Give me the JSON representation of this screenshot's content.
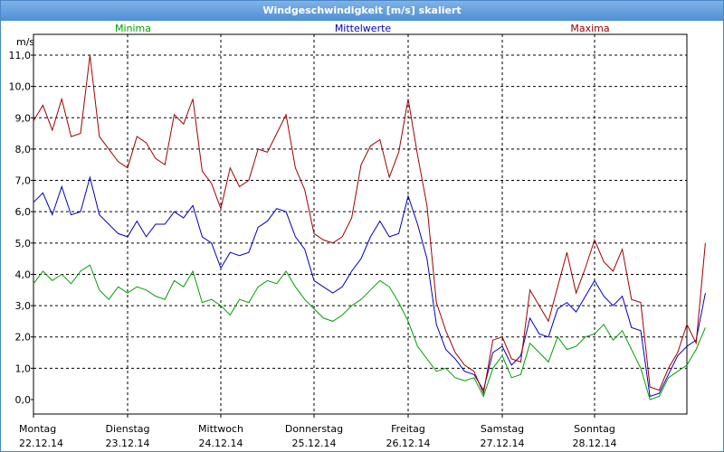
{
  "window": {
    "title": "Windgeschwindigkeit [m/s] skaliert"
  },
  "chart_data": {
    "type": "line",
    "title": "Windgeschwindigkeit [m/s] skaliert",
    "ylabel": "m/s",
    "ylim": [
      0,
      11.5
    ],
    "yticks": [
      "0,0",
      "1,0",
      "2,0",
      "3,0",
      "4,0",
      "5,0",
      "6,0",
      "7,0",
      "8,0",
      "9,0",
      "10,0",
      "11,0"
    ],
    "xlim": [
      0,
      7.2
    ],
    "xticks": [
      {
        "day": "Montag",
        "date": "22.12.14"
      },
      {
        "day": "Dienstag",
        "date": "23.12.14"
      },
      {
        "day": "Mittwoch",
        "date": "24.12.14"
      },
      {
        "day": "Donnerstag",
        "date": "25.12.14"
      },
      {
        "day": "Freitag",
        "date": "26.12.14"
      },
      {
        "day": "Samstag",
        "date": "27.12.14"
      },
      {
        "day": "Sonntag",
        "date": "28.12.14"
      }
    ],
    "grid": true,
    "legend_position": "top",
    "series": [
      {
        "name": "Minima",
        "color": "#00a000",
        "x": [
          0,
          0.1,
          0.2,
          0.3,
          0.4,
          0.5,
          0.6,
          0.7,
          0.8,
          0.9,
          1.0,
          1.1,
          1.2,
          1.3,
          1.4,
          1.5,
          1.6,
          1.7,
          1.8,
          1.9,
          2.0,
          2.1,
          2.2,
          2.3,
          2.4,
          2.5,
          2.6,
          2.7,
          2.8,
          2.9,
          3.0,
          3.1,
          3.2,
          3.3,
          3.4,
          3.5,
          3.6,
          3.7,
          3.8,
          3.9,
          4.0,
          4.1,
          4.2,
          4.3,
          4.4,
          4.5,
          4.6,
          4.7,
          4.8,
          4.9,
          5.0,
          5.1,
          5.2,
          5.3,
          5.4,
          5.5,
          5.6,
          5.7,
          5.8,
          5.9,
          6.0,
          6.1,
          6.2,
          6.3,
          6.4,
          6.5,
          6.6,
          6.7,
          6.8,
          6.9,
          7.0,
          7.1,
          7.2
        ],
        "values": [
          3.7,
          4.1,
          3.8,
          4.0,
          3.7,
          4.1,
          4.3,
          3.5,
          3.2,
          3.6,
          3.4,
          3.6,
          3.5,
          3.3,
          3.2,
          3.8,
          3.6,
          4.1,
          3.1,
          3.2,
          3.0,
          2.7,
          3.2,
          3.1,
          3.6,
          3.8,
          3.7,
          4.1,
          3.6,
          3.2,
          2.9,
          2.6,
          2.5,
          2.7,
          3.0,
          3.2,
          3.5,
          3.8,
          3.6,
          3.1,
          2.5,
          1.7,
          1.3,
          0.9,
          1.0,
          0.7,
          0.6,
          0.7,
          0.1,
          1.0,
          1.4,
          0.7,
          0.8,
          1.8,
          1.5,
          1.2,
          2.0,
          1.6,
          1.7,
          2.0,
          2.1,
          2.4,
          1.9,
          2.2,
          1.6,
          1.0,
          0.0,
          0.1,
          0.7,
          0.9,
          1.1,
          1.6,
          2.3
        ]
      },
      {
        "name": "Mittelwerte",
        "color": "#0000c0",
        "x": [
          0,
          0.1,
          0.2,
          0.3,
          0.4,
          0.5,
          0.6,
          0.7,
          0.8,
          0.9,
          1.0,
          1.1,
          1.2,
          1.3,
          1.4,
          1.5,
          1.6,
          1.7,
          1.8,
          1.9,
          2.0,
          2.1,
          2.2,
          2.3,
          2.4,
          2.5,
          2.6,
          2.7,
          2.8,
          2.9,
          3.0,
          3.1,
          3.2,
          3.3,
          3.4,
          3.5,
          3.6,
          3.7,
          3.8,
          3.9,
          4.0,
          4.1,
          4.2,
          4.3,
          4.4,
          4.5,
          4.6,
          4.7,
          4.8,
          4.9,
          5.0,
          5.1,
          5.2,
          5.3,
          5.4,
          5.5,
          5.6,
          5.7,
          5.8,
          5.9,
          6.0,
          6.1,
          6.2,
          6.3,
          6.4,
          6.5,
          6.6,
          6.7,
          6.8,
          6.9,
          7.0,
          7.1,
          7.2
        ],
        "values": [
          6.3,
          6.6,
          5.9,
          6.8,
          5.9,
          6.0,
          7.1,
          5.9,
          5.6,
          5.3,
          5.2,
          5.7,
          5.2,
          5.6,
          5.6,
          6.0,
          5.8,
          6.2,
          5.2,
          5.0,
          4.2,
          4.7,
          4.6,
          4.7,
          5.5,
          5.7,
          6.1,
          6.0,
          5.2,
          4.8,
          3.8,
          3.6,
          3.4,
          3.6,
          4.1,
          4.5,
          5.2,
          5.7,
          5.2,
          5.3,
          6.5,
          5.6,
          4.5,
          2.4,
          1.6,
          1.3,
          0.9,
          0.8,
          0.3,
          1.5,
          1.7,
          1.1,
          1.4,
          2.6,
          2.1,
          2.0,
          2.9,
          3.1,
          2.8,
          3.3,
          3.8,
          3.3,
          3.0,
          3.3,
          2.3,
          2.2,
          0.1,
          0.2,
          0.8,
          1.4,
          1.7,
          1.9,
          3.4
        ]
      },
      {
        "name": "Maxima",
        "color": "#a00000",
        "x": [
          0,
          0.1,
          0.2,
          0.3,
          0.4,
          0.5,
          0.6,
          0.7,
          0.8,
          0.9,
          1.0,
          1.1,
          1.2,
          1.3,
          1.4,
          1.5,
          1.6,
          1.7,
          1.8,
          1.9,
          2.0,
          2.1,
          2.2,
          2.3,
          2.4,
          2.5,
          2.6,
          2.7,
          2.8,
          2.9,
          3.0,
          3.1,
          3.2,
          3.3,
          3.4,
          3.5,
          3.6,
          3.7,
          3.8,
          3.9,
          4.0,
          4.1,
          4.2,
          4.3,
          4.4,
          4.5,
          4.6,
          4.7,
          4.8,
          4.9,
          5.0,
          5.1,
          5.2,
          5.3,
          5.4,
          5.5,
          5.6,
          5.7,
          5.8,
          5.9,
          6.0,
          6.1,
          6.2,
          6.3,
          6.4,
          6.5,
          6.6,
          6.7,
          6.8,
          6.9,
          7.0,
          7.1,
          7.2
        ],
        "values": [
          8.9,
          9.4,
          8.6,
          9.6,
          8.4,
          8.5,
          11.0,
          8.4,
          8.0,
          7.6,
          7.4,
          8.4,
          8.2,
          7.7,
          7.5,
          9.1,
          8.8,
          9.6,
          7.3,
          6.9,
          6.1,
          7.4,
          6.8,
          7.0,
          8.0,
          7.9,
          8.5,
          9.1,
          7.4,
          6.7,
          5.3,
          5.1,
          5.0,
          5.2,
          5.8,
          7.5,
          8.1,
          8.3,
          7.1,
          7.9,
          9.6,
          7.8,
          6.2,
          3.1,
          2.2,
          1.5,
          1.1,
          0.9,
          0.2,
          1.9,
          2.0,
          1.3,
          1.2,
          3.5,
          3.0,
          2.5,
          3.6,
          4.7,
          3.4,
          4.2,
          5.1,
          4.4,
          4.1,
          4.8,
          3.2,
          3.1,
          0.4,
          0.3,
          1.0,
          1.5,
          2.4,
          1.8,
          5.0
        ]
      }
    ]
  }
}
